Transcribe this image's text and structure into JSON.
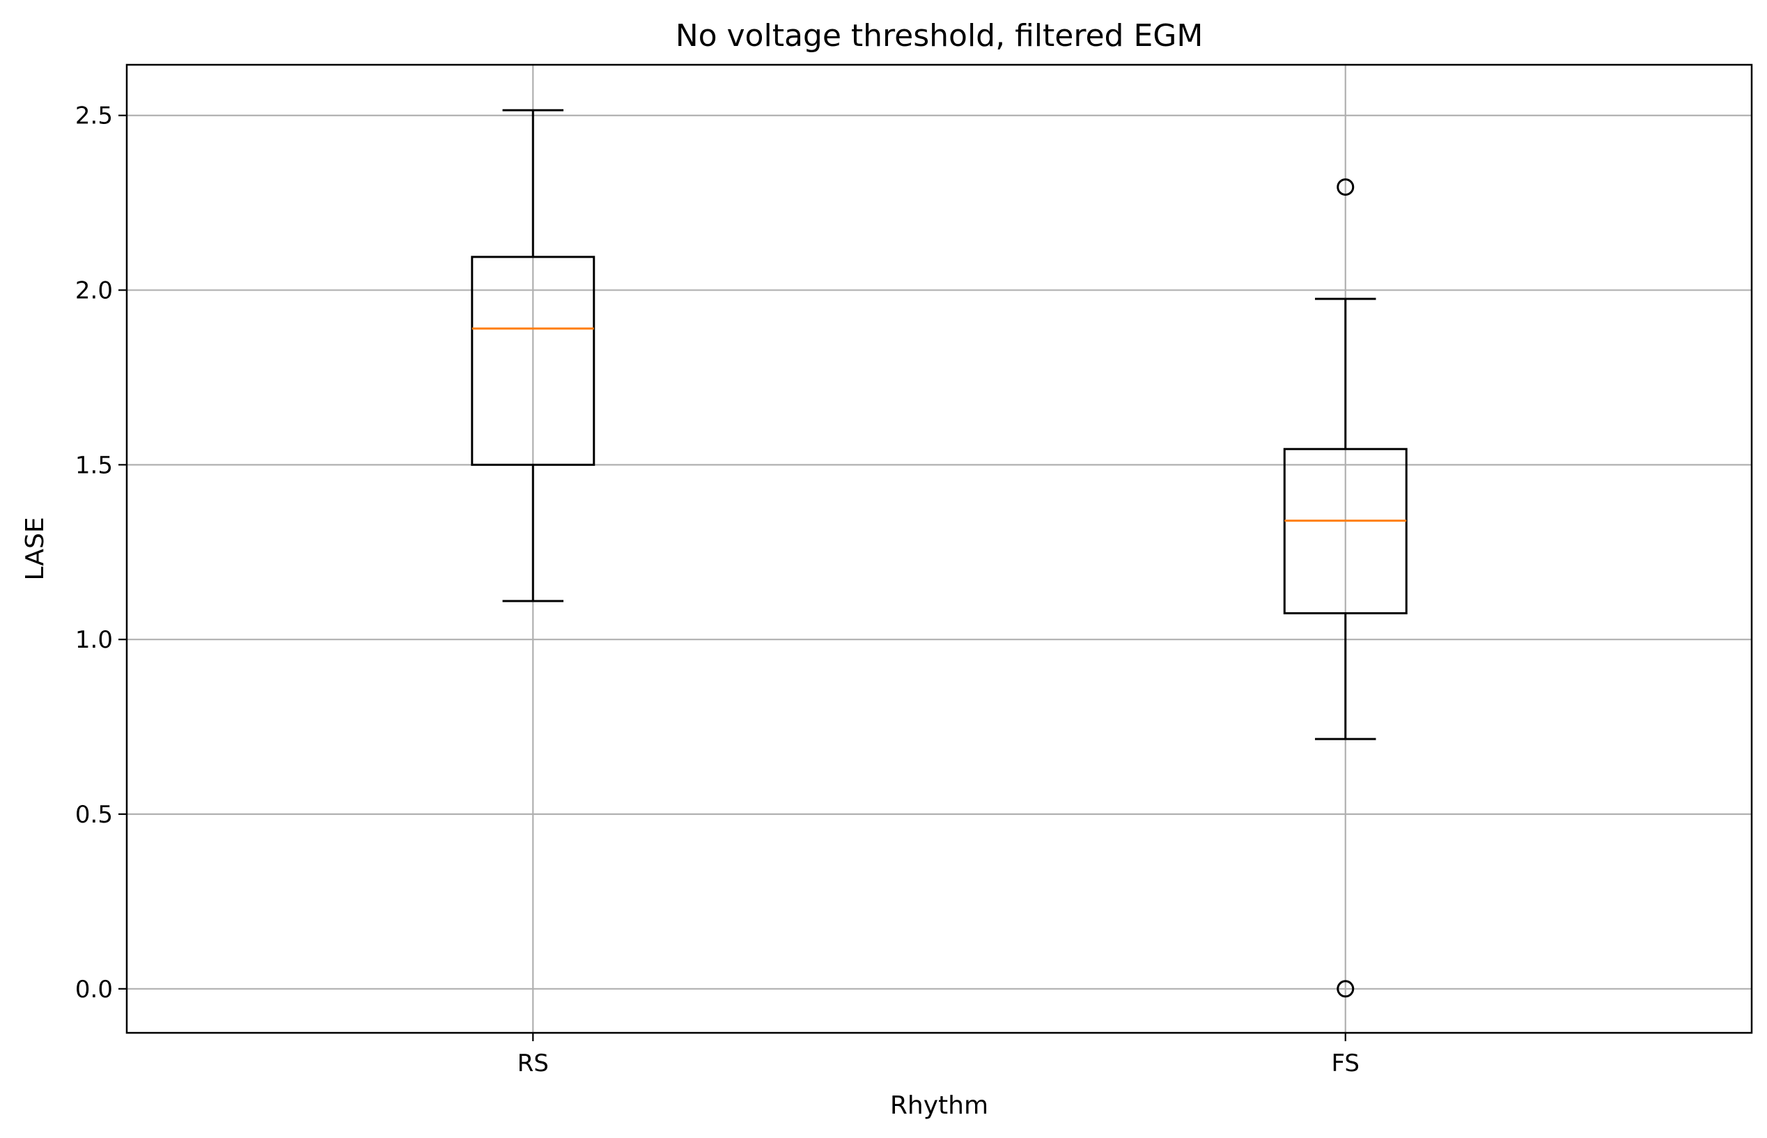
{
  "chart_data": {
    "type": "box",
    "title": "No voltage threshold, filtered EGM",
    "xlabel": "Rhythm",
    "ylabel": "LASE",
    "categories": [
      "RS",
      "FS"
    ],
    "ylim": [
      -0.126,
      2.645
    ],
    "yticks": [
      0.0,
      0.5,
      1.0,
      1.5,
      2.0,
      2.5
    ],
    "ytick_labels": [
      "0.0",
      "0.5",
      "1.0",
      "1.5",
      "2.0",
      "2.5"
    ],
    "grid": true,
    "boxes": [
      {
        "category": "RS",
        "whisker_low": 1.11,
        "q1": 1.5,
        "median": 1.89,
        "q3": 2.095,
        "whisker_high": 2.515,
        "outliers": []
      },
      {
        "category": "FS",
        "whisker_low": 0.715,
        "q1": 1.075,
        "median": 1.34,
        "q3": 1.545,
        "whisker_high": 1.975,
        "outliers": [
          2.295,
          0.0
        ]
      }
    ],
    "colors": {
      "box": "#000000",
      "median": "#ff7f0e",
      "grid": "#b0b0b0"
    }
  }
}
